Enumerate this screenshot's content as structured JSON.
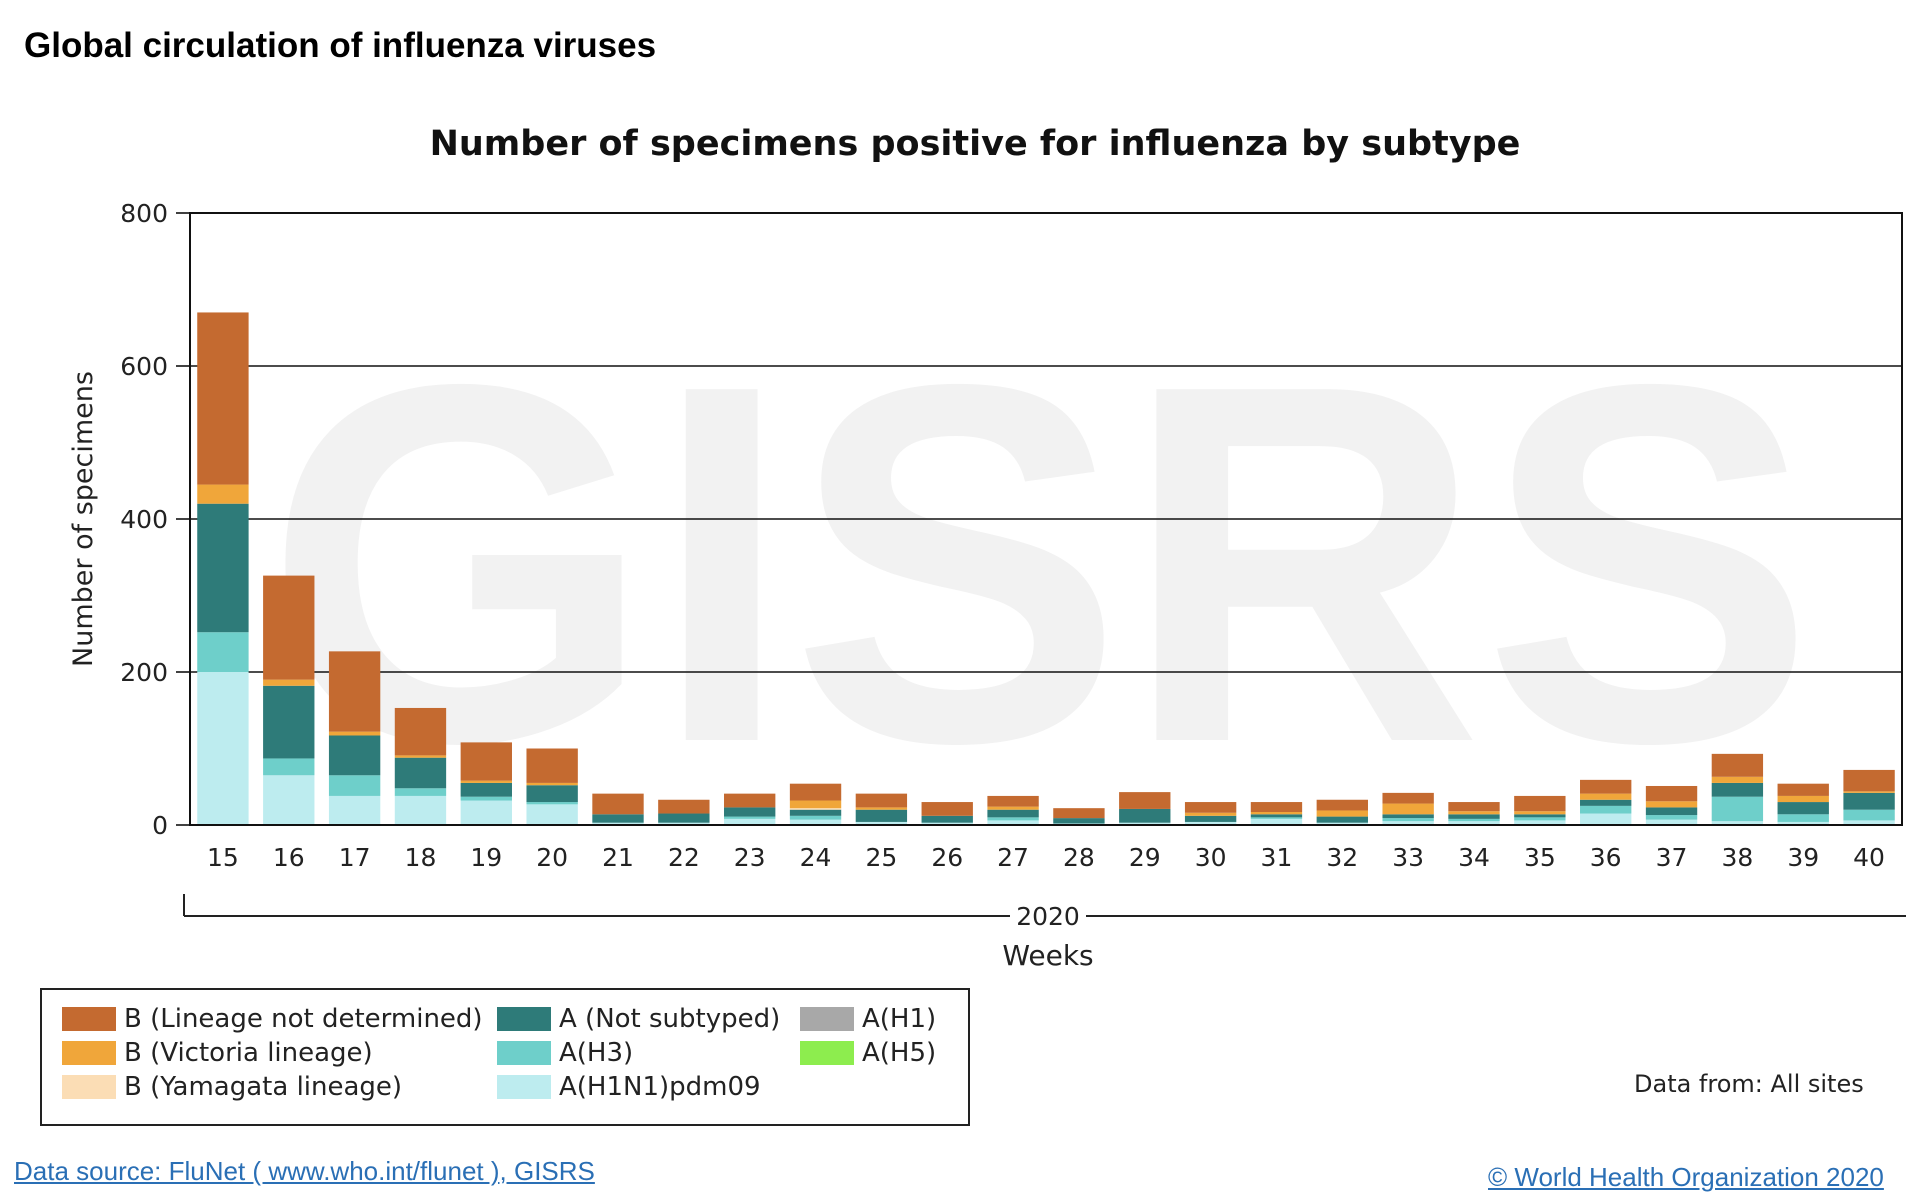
{
  "page": {
    "title": "Global circulation of influenza viruses",
    "data_from": "Data from: All sites",
    "source_link": "Data source: FluNet ( www.who.int/flunet ), GISRS",
    "copyright_link": "© World Health Organization 2020",
    "watermark": "GISRS"
  },
  "colors": {
    "B (Lineage not determined)": "#c46a30",
    "B (Victoria lineage)": "#f0a63a",
    "B (Yamagata lineage)": "#fbddb5",
    "A (Not subtyped)": "#2e7b79",
    "A(H3)": "#6ecfca",
    "A(H1N1)pdm09": "#bdecef",
    "A(H1)": "#a8a8a8",
    "A(H5)": "#8ded4e"
  },
  "legend": [
    {
      "label": "B (Lineage not determined)",
      "color": "#c46a30"
    },
    {
      "label": "B (Victoria lineage)",
      "color": "#f0a63a"
    },
    {
      "label": "B (Yamagata lineage)",
      "color": "#fbddb5"
    },
    {
      "label": "A (Not subtyped)",
      "color": "#2e7b79"
    },
    {
      "label": "A(H3)",
      "color": "#6ecfca"
    },
    {
      "label": "A(H1N1)pdm09",
      "color": "#bdecef"
    },
    {
      "label": "A(H1)",
      "color": "#a8a8a8"
    },
    {
      "label": "A(H5)",
      "color": "#8ded4e"
    }
  ],
  "chart_data": {
    "type": "bar",
    "stacked": true,
    "title": "Number of specimens positive for influenza by subtype",
    "xlabel": "Weeks",
    "x_group_label": "2020",
    "ylabel": "Number of specimens",
    "ylim": [
      0,
      800
    ],
    "yticks": [
      0,
      200,
      400,
      600,
      800
    ],
    "grid": true,
    "categories": [
      "15",
      "16",
      "17",
      "18",
      "19",
      "20",
      "21",
      "22",
      "23",
      "24",
      "25",
      "26",
      "27",
      "28",
      "29",
      "30",
      "31",
      "32",
      "33",
      "34",
      "35",
      "36",
      "37",
      "38",
      "39",
      "40"
    ],
    "series": [
      {
        "name": "A(H1N1)pdm09",
        "values": [
          200,
          65,
          38,
          38,
          32,
          27,
          3,
          3,
          8,
          7,
          4,
          3,
          6,
          2,
          3,
          4,
          8,
          3,
          5,
          5,
          6,
          15,
          7,
          5,
          4,
          6
        ]
      },
      {
        "name": "A(H3)",
        "values": [
          52,
          22,
          27,
          10,
          5,
          3,
          0,
          0,
          3,
          5,
          0,
          0,
          4,
          0,
          0,
          0,
          2,
          0,
          4,
          3,
          4,
          10,
          6,
          32,
          10,
          14
        ]
      },
      {
        "name": "A (Not subtyped)",
        "values": [
          168,
          95,
          52,
          40,
          18,
          22,
          11,
          12,
          12,
          8,
          16,
          9,
          10,
          7,
          18,
          8,
          4,
          8,
          5,
          6,
          4,
          8,
          10,
          18,
          16,
          22
        ]
      },
      {
        "name": "A(H1)",
        "values": [
          0,
          0,
          0,
          0,
          0,
          0,
          0,
          0,
          0,
          0,
          0,
          0,
          0,
          0,
          0,
          0,
          0,
          0,
          0,
          0,
          0,
          0,
          0,
          0,
          0,
          0
        ]
      },
      {
        "name": "A(H5)",
        "values": [
          0,
          0,
          0,
          0,
          0,
          0,
          0,
          0,
          0,
          0,
          0,
          0,
          0,
          0,
          0,
          0,
          0,
          0,
          0,
          0,
          0,
          0,
          0,
          0,
          0,
          0
        ]
      },
      {
        "name": "B (Yamagata lineage)",
        "values": [
          0,
          0,
          0,
          0,
          0,
          0,
          0,
          0,
          0,
          2,
          0,
          0,
          0,
          0,
          0,
          0,
          0,
          0,
          0,
          0,
          0,
          0,
          0,
          0,
          0,
          0
        ]
      },
      {
        "name": "B (Victoria lineage)",
        "values": [
          25,
          8,
          5,
          3,
          3,
          3,
          0,
          0,
          0,
          10,
          3,
          0,
          4,
          0,
          0,
          4,
          3,
          8,
          14,
          4,
          4,
          8,
          8,
          8,
          8,
          2
        ]
      },
      {
        "name": "B (Lineage not determined)",
        "values": [
          225,
          136,
          105,
          62,
          50,
          45,
          27,
          18,
          18,
          22,
          18,
          18,
          14,
          13,
          22,
          14,
          13,
          14,
          14,
          12,
          20,
          18,
          20,
          30,
          16,
          28
        ]
      }
    ]
  }
}
